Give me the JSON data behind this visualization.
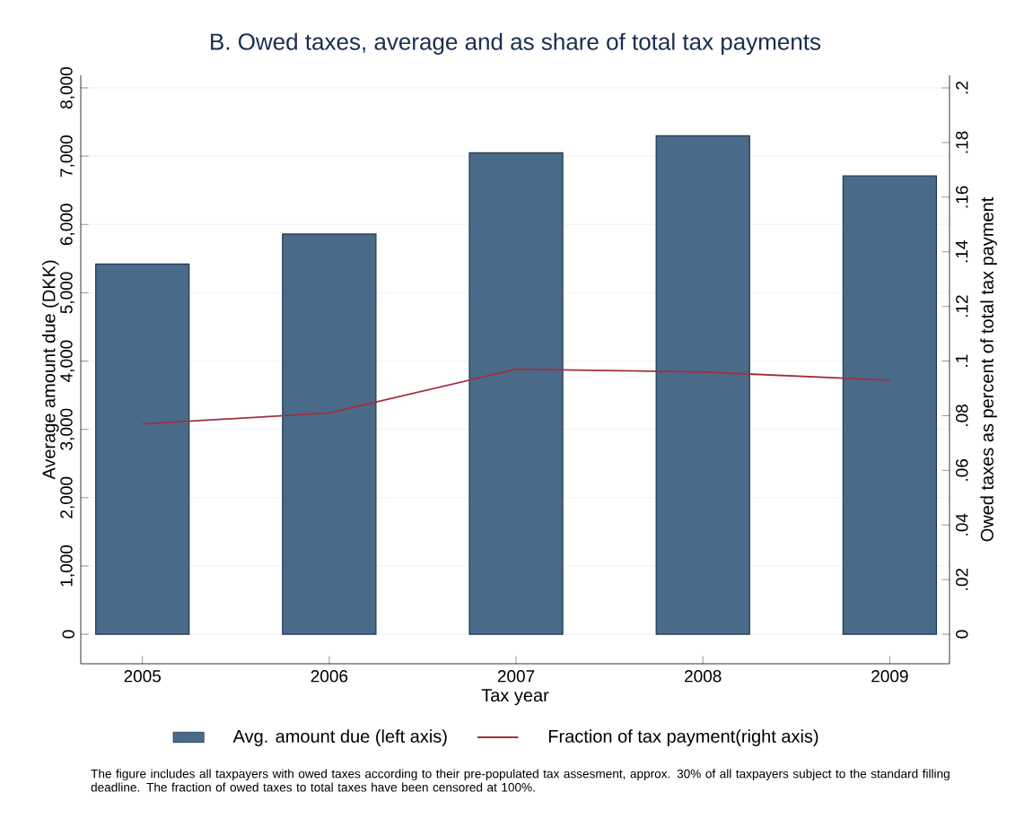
{
  "chart_data": {
    "type": "bar",
    "title": "B. Owed taxes, average and as share of total tax payments",
    "xlabel": "Tax year",
    "ylabel": "Average amount due (DKK)",
    "y2label": "Owed taxes as percent of total tax payment",
    "categories": [
      "2005",
      "2006",
      "2007",
      "2008",
      "2009"
    ],
    "series": [
      {
        "name": "Avg. amount due (left axis)",
        "color": "#4a6a8a",
        "values": [
          5420,
          5860,
          7050,
          7300,
          6710
        ]
      },
      {
        "name": "Fraction of tax payment(right axis)",
        "type": "line",
        "axis": "y2",
        "color": "#a03040",
        "values": [
          0.077,
          0.081,
          0.097,
          0.096,
          0.093
        ]
      }
    ],
    "ylim": [
      0,
      8000
    ],
    "yticks": [
      0,
      {
        "value": 1000,
        "label": "1,000"
      },
      {
        "value": 2000,
        "label": "2,000"
      },
      {
        "value": 3000,
        "label": "3,000"
      },
      {
        "value": 4000,
        "label": "4,000"
      },
      {
        "value": 5000,
        "label": "5,000"
      },
      {
        "value": 6000,
        "label": "6,000"
      },
      {
        "value": 7000,
        "label": "7,000"
      },
      {
        "value": 8000,
        "label": "8,000"
      }
    ],
    "y2lim": [
      0,
      0.2
    ],
    "y2ticks": [
      0,
      {
        "value": 0.02,
        "label": ".02"
      },
      {
        "value": 0.04,
        "label": ".04"
      },
      {
        "value": 0.06,
        "label": ".06"
      },
      {
        "value": 0.08,
        "label": ".08"
      },
      {
        "value": 0.1,
        "label": ".1"
      },
      {
        "value": 0.12,
        "label": ".12"
      },
      {
        "value": 0.14,
        "label": ".14"
      },
      {
        "value": 0.16,
        "label": ".16"
      },
      {
        "value": 0.18,
        "label": ".18"
      },
      {
        "value": 0.2,
        "label": ".2"
      }
    ],
    "grid": "y",
    "legend": "bottom",
    "annotations": [
      "The figure includes all taxpayers with owed taxes according to their pre-populated tax assesment, approx. 30% of all taxpayers subject to the standard filling deadline. The fraction of owed taxes to total taxes have been censored at 100%."
    ]
  }
}
